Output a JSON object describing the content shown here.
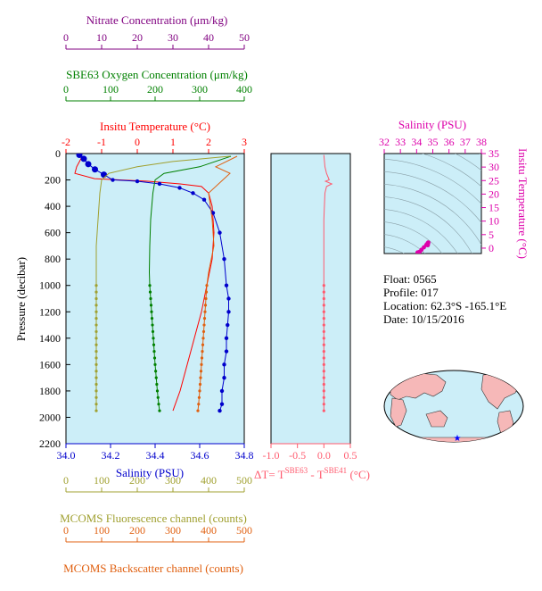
{
  "colors": {
    "nitrate": "#800080",
    "oxygen": "#008000",
    "temperature": "#ff0000",
    "salinity": "#0000cc",
    "fluorescence": "#a0a030",
    "backscatter": "#e06010",
    "delta_t": "#ff5a6e",
    "ts_plot": "#dd00aa",
    "panel_bg": "#cceef8",
    "map_bg": "#cceef8",
    "land": "#f6b8b8"
  },
  "chart_data": [
    {
      "type": "line",
      "name": "main-profile",
      "ylabel": "Pressure (decibar)",
      "ylim": [
        2200,
        0
      ],
      "yticks": [
        0,
        200,
        400,
        600,
        800,
        1000,
        1200,
        1400,
        1600,
        1800,
        2000,
        2200
      ],
      "grid": false,
      "axes": {
        "nitrate": {
          "label": "Nitrate Concentration (μm/kg)",
          "range": [
            0,
            50
          ],
          "ticks": [
            0,
            10,
            20,
            30,
            40,
            50
          ]
        },
        "oxygen": {
          "label": "SBE63 Oxygen Concentration (μm/kg)",
          "range": [
            0,
            400
          ],
          "ticks": [
            0,
            100,
            200,
            300,
            400
          ]
        },
        "temperature": {
          "label": "Insitu Temperature (°C)",
          "range": [
            -2,
            3
          ],
          "ticks": [
            -2,
            -1,
            0,
            1,
            2,
            3
          ]
        },
        "salinity": {
          "label": "Salinity (PSU)",
          "range": [
            34.0,
            34.8
          ],
          "ticks": [
            "34.0",
            "34.2",
            "34.4",
            "34.6",
            "34.8"
          ]
        },
        "fluorescence": {
          "label": "MCOMS Fluorescence channel (counts)",
          "range": [
            0,
            500
          ],
          "ticks": [
            0,
            100,
            200,
            300,
            400,
            500
          ]
        },
        "backscatter": {
          "label": "MCOMS Backscatter channel (counts)",
          "range": [
            0,
            500
          ],
          "ticks": [
            0,
            100,
            200,
            300,
            400,
            500
          ]
        }
      },
      "series": [
        {
          "axis": "temperature",
          "x": [
            -1.55,
            -1.6,
            -1.7,
            -1.75,
            -1.2,
            -0.5,
            0.3,
            1.2,
            1.8,
            2.0,
            2.1,
            2.15,
            2.1,
            1.95,
            1.8,
            1.6,
            1.4,
            1.2,
            1.0
          ],
          "y": [
            20,
            50,
            100,
            150,
            190,
            200,
            210,
            230,
            250,
            300,
            400,
            600,
            800,
            1000,
            1200,
            1400,
            1600,
            1800,
            1950
          ]
        },
        {
          "axis": "salinity",
          "x": [
            34.06,
            34.08,
            34.1,
            34.13,
            34.17,
            34.21,
            34.32,
            34.42,
            34.51,
            34.57,
            34.62,
            34.66,
            34.69,
            34.71,
            34.72,
            34.73,
            34.73,
            34.725,
            34.72,
            34.72,
            34.71,
            34.71,
            34.7,
            34.7,
            34.69
          ],
          "y": [
            10,
            40,
            80,
            120,
            160,
            200,
            210,
            230,
            260,
            300,
            350,
            450,
            600,
            800,
            1000,
            1100,
            1200,
            1300,
            1400,
            1500,
            1600,
            1700,
            1800,
            1900,
            1950
          ]
        },
        {
          "axis": "oxygen",
          "x": [
            370,
            300,
            220,
            200,
            195,
            190,
            188,
            187,
            188,
            192,
            196,
            200,
            205,
            208,
            210
          ],
          "y": [
            20,
            100,
            150,
            200,
            300,
            500,
            700,
            900,
            1000,
            1200,
            1400,
            1600,
            1800,
            1900,
            1950
          ],
          "marker_from": 1000
        },
        {
          "axis": "fluorescence",
          "x": [
            460,
            300,
            200,
            120,
            100,
            95,
            90,
            85,
            85,
            85,
            85,
            85,
            85,
            85,
            85
          ],
          "y": [
            20,
            60,
            100,
            150,
            200,
            300,
            500,
            700,
            900,
            1000,
            1200,
            1400,
            1600,
            1800,
            1950
          ],
          "marker_from": 1000
        },
        {
          "axis": "backscatter",
          "x": [
            480,
            420,
            460,
            440,
            400,
            410,
            415,
            400,
            395,
            390,
            385,
            380,
            375,
            372,
            370
          ],
          "y": [
            20,
            100,
            150,
            200,
            300,
            500,
            700,
            900,
            1000,
            1200,
            1400,
            1600,
            1800,
            1900,
            1950
          ],
          "marker_from": 1000
        }
      ]
    },
    {
      "type": "line",
      "name": "delta-t",
      "xlabel_prefix": "ΔT= T",
      "xlabel_sup1": "SBE63",
      "xlabel_mid": " - T",
      "xlabel_sup2": "SBE41",
      "xlabel_suffix": " (°C)",
      "xlim": [
        -1.0,
        0.5
      ],
      "xticks": [
        "-1.0",
        "-0.5",
        "0.0",
        "0.5"
      ],
      "x": [
        0.0,
        0.02,
        0.05,
        0.1,
        0.03,
        0.15,
        0.05,
        0.02,
        0.0,
        0.0,
        0.0,
        0.0,
        0.0,
        0.0
      ],
      "y": [
        10,
        100,
        150,
        200,
        210,
        230,
        250,
        300,
        500,
        800,
        1000,
        1400,
        1800,
        1950
      ],
      "marker_from": 1000
    },
    {
      "type": "scatter",
      "name": "ts-diagram",
      "xlabel": "Salinity (PSU)",
      "ylabel": "Insitu Temperature (°C)",
      "xlim": [
        32,
        38
      ],
      "ylim": [
        -2,
        35
      ],
      "xticks": [
        32,
        33,
        34,
        35,
        36,
        37,
        38
      ],
      "yticks": [
        0,
        5,
        10,
        15,
        20,
        25,
        30,
        35
      ],
      "x": [
        34.06,
        34.1,
        34.2,
        34.3,
        34.45,
        34.6,
        34.68,
        34.72,
        34.72,
        34.7,
        34.69
      ],
      "y": [
        -1.6,
        -1.7,
        -1.3,
        -0.6,
        0.3,
        1.2,
        1.8,
        2.1,
        2.0,
        1.6,
        1.1
      ]
    }
  ],
  "info": {
    "float": "Float:  0565",
    "profile": "Profile:  017",
    "location": "Location:  62.3°S  -165.1°E",
    "date": "Date:  10/15/2016"
  },
  "map": {
    "marker_icon": "star-icon"
  }
}
